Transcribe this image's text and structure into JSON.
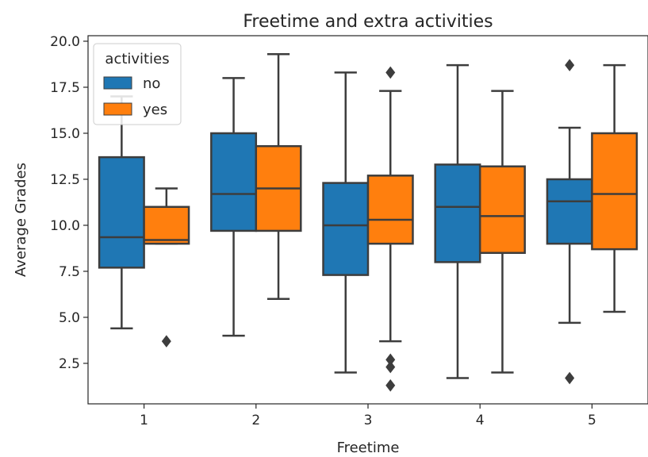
{
  "chart_data": {
    "type": "box",
    "title": "Freetime and extra activities",
    "xlabel": "Freetime",
    "ylabel": "Average Grades",
    "categories": [
      "1",
      "2",
      "3",
      "4",
      "5"
    ],
    "ylim": [
      0.3,
      20.3
    ],
    "yticks": [
      "2.5",
      "5.0",
      "7.5",
      "10.0",
      "12.5",
      "15.0",
      "17.5",
      "20.0"
    ],
    "legend": {
      "title": "activities",
      "placement": "top-left"
    },
    "series": [
      {
        "name": "no",
        "color": "#1f77b4",
        "boxes": [
          {
            "whislo": 4.4,
            "q1": 7.7,
            "median": 9.35,
            "q3": 13.7,
            "whishi": 17.0,
            "fliers": []
          },
          {
            "whislo": 4.0,
            "q1": 9.7,
            "median": 11.7,
            "q3": 15.0,
            "whishi": 18.0,
            "fliers": []
          },
          {
            "whislo": 2.0,
            "q1": 7.3,
            "median": 10.0,
            "q3": 12.3,
            "whishi": 18.3,
            "fliers": []
          },
          {
            "whislo": 1.7,
            "q1": 8.0,
            "median": 11.0,
            "q3": 13.3,
            "whishi": 18.7,
            "fliers": []
          },
          {
            "whislo": 4.7,
            "q1": 9.0,
            "median": 11.3,
            "q3": 12.5,
            "whishi": 15.3,
            "fliers": [
              1.7,
              18.7
            ]
          }
        ]
      },
      {
        "name": "yes",
        "color": "#ff7f0e",
        "boxes": [
          {
            "whislo": 9.0,
            "q1": 9.0,
            "median": 9.2,
            "q3": 11.0,
            "whishi": 12.0,
            "fliers": [
              3.7
            ]
          },
          {
            "whislo": 6.0,
            "q1": 9.7,
            "median": 12.0,
            "q3": 14.3,
            "whishi": 19.3,
            "fliers": []
          },
          {
            "whislo": 3.7,
            "q1": 9.0,
            "median": 10.3,
            "q3": 12.7,
            "whishi": 17.3,
            "fliers": [
              1.3,
              2.3,
              2.7,
              18.3
            ]
          },
          {
            "whislo": 2.0,
            "q1": 8.5,
            "median": 10.5,
            "q3": 13.2,
            "whishi": 17.3,
            "fliers": []
          },
          {
            "whislo": 5.3,
            "q1": 8.7,
            "median": 11.7,
            "q3": 15.0,
            "whishi": 18.7,
            "fliers": []
          }
        ]
      }
    ]
  }
}
